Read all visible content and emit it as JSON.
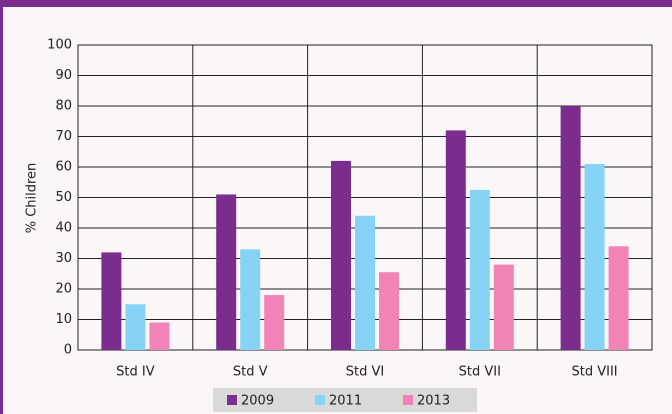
{
  "chart_data": {
    "type": "bar",
    "y_label": "% Children",
    "categories": [
      "Std IV",
      "Std V",
      "Std VI",
      "Std VII",
      "Std VIII"
    ],
    "series": [
      {
        "name": "2009",
        "color": "#7b2d8e",
        "values": [
          32,
          51,
          62,
          72,
          80
        ]
      },
      {
        "name": "2011",
        "color": "#87d3f5",
        "values": [
          15,
          33,
          44,
          52.5,
          61
        ]
      },
      {
        "name": "2013",
        "color": "#f283b6",
        "values": [
          9,
          18,
          25.5,
          28,
          34
        ]
      }
    ],
    "ylim": [
      0,
      100
    ],
    "yticks": [
      0,
      10,
      20,
      30,
      40,
      50,
      60,
      70,
      80,
      90,
      100
    ],
    "grid": true,
    "legend": "bottom"
  }
}
